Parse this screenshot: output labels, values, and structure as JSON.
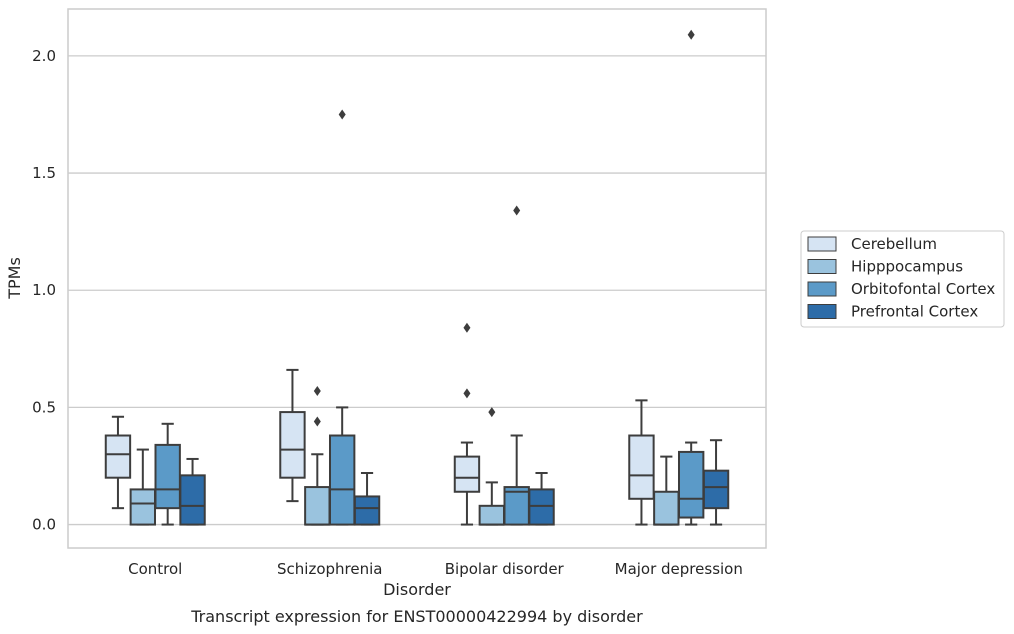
{
  "chart_data": {
    "type": "box",
    "title": "",
    "caption": "Transcript expression for ENST00000422994 by disorder",
    "xlabel": "Disorder",
    "ylabel": "TPMs",
    "ylim": [
      -0.1,
      2.2
    ],
    "yticks": [
      0.0,
      0.5,
      1.0,
      1.5,
      2.0
    ],
    "ytick_labels": [
      "0.0",
      "0.5",
      "1.0",
      "1.5",
      "2.0"
    ],
    "grid": "horizontal",
    "legend_position": "right",
    "categories": [
      "Control",
      "Schizophrenia",
      "Bipolar disorder",
      "Major depression"
    ],
    "series": [
      {
        "name": "Cerebellum",
        "color": "#d6e4f3",
        "boxes": [
          {
            "whisker_low": 0.07,
            "q1": 0.2,
            "median": 0.3,
            "q3": 0.38,
            "whisker_high": 0.46,
            "outliers": []
          },
          {
            "whisker_low": 0.1,
            "q1": 0.2,
            "median": 0.32,
            "q3": 0.48,
            "whisker_high": 0.66,
            "outliers": []
          },
          {
            "whisker_low": 0.0,
            "q1": 0.14,
            "median": 0.2,
            "q3": 0.29,
            "whisker_high": 0.35,
            "outliers": [
              0.56,
              0.84
            ]
          },
          {
            "whisker_low": 0.0,
            "q1": 0.11,
            "median": 0.21,
            "q3": 0.38,
            "whisker_high": 0.53,
            "outliers": []
          }
        ]
      },
      {
        "name": "Hipppocampus",
        "color": "#9ac3de",
        "boxes": [
          {
            "whisker_low": 0.0,
            "q1": 0.0,
            "median": 0.09,
            "q3": 0.15,
            "whisker_high": 0.32,
            "outliers": []
          },
          {
            "whisker_low": 0.0,
            "q1": 0.0,
            "median": 0.0,
            "q3": 0.16,
            "whisker_high": 0.3,
            "outliers": [
              0.44,
              0.57
            ]
          },
          {
            "whisker_low": 0.0,
            "q1": 0.0,
            "median": 0.0,
            "q3": 0.08,
            "whisker_high": 0.18,
            "outliers": [
              0.48
            ]
          },
          {
            "whisker_low": 0.0,
            "q1": 0.0,
            "median": 0.0,
            "q3": 0.14,
            "whisker_high": 0.29,
            "outliers": []
          }
        ]
      },
      {
        "name": "Orbitofontal Cortex",
        "color": "#5b9ac8",
        "boxes": [
          {
            "whisker_low": 0.0,
            "q1": 0.07,
            "median": 0.15,
            "q3": 0.34,
            "whisker_high": 0.43,
            "outliers": []
          },
          {
            "whisker_low": 0.0,
            "q1": 0.0,
            "median": 0.15,
            "q3": 0.38,
            "whisker_high": 0.5,
            "outliers": [
              1.75
            ]
          },
          {
            "whisker_low": 0.0,
            "q1": 0.0,
            "median": 0.14,
            "q3": 0.16,
            "whisker_high": 0.38,
            "outliers": [
              1.34
            ]
          },
          {
            "whisker_low": 0.0,
            "q1": 0.03,
            "median": 0.11,
            "q3": 0.31,
            "whisker_high": 0.35,
            "outliers": [
              2.09
            ]
          }
        ]
      },
      {
        "name": "Prefrontal Cortex",
        "color": "#2d6ca8",
        "boxes": [
          {
            "whisker_low": 0.0,
            "q1": 0.0,
            "median": 0.08,
            "q3": 0.21,
            "whisker_high": 0.28,
            "outliers": []
          },
          {
            "whisker_low": 0.0,
            "q1": 0.0,
            "median": 0.07,
            "q3": 0.12,
            "whisker_high": 0.22,
            "outliers": []
          },
          {
            "whisker_low": 0.0,
            "q1": 0.0,
            "median": 0.08,
            "q3": 0.15,
            "whisker_high": 0.22,
            "outliers": []
          },
          {
            "whisker_low": 0.0,
            "q1": 0.07,
            "median": 0.16,
            "q3": 0.23,
            "whisker_high": 0.36,
            "outliers": []
          }
        ]
      }
    ]
  }
}
